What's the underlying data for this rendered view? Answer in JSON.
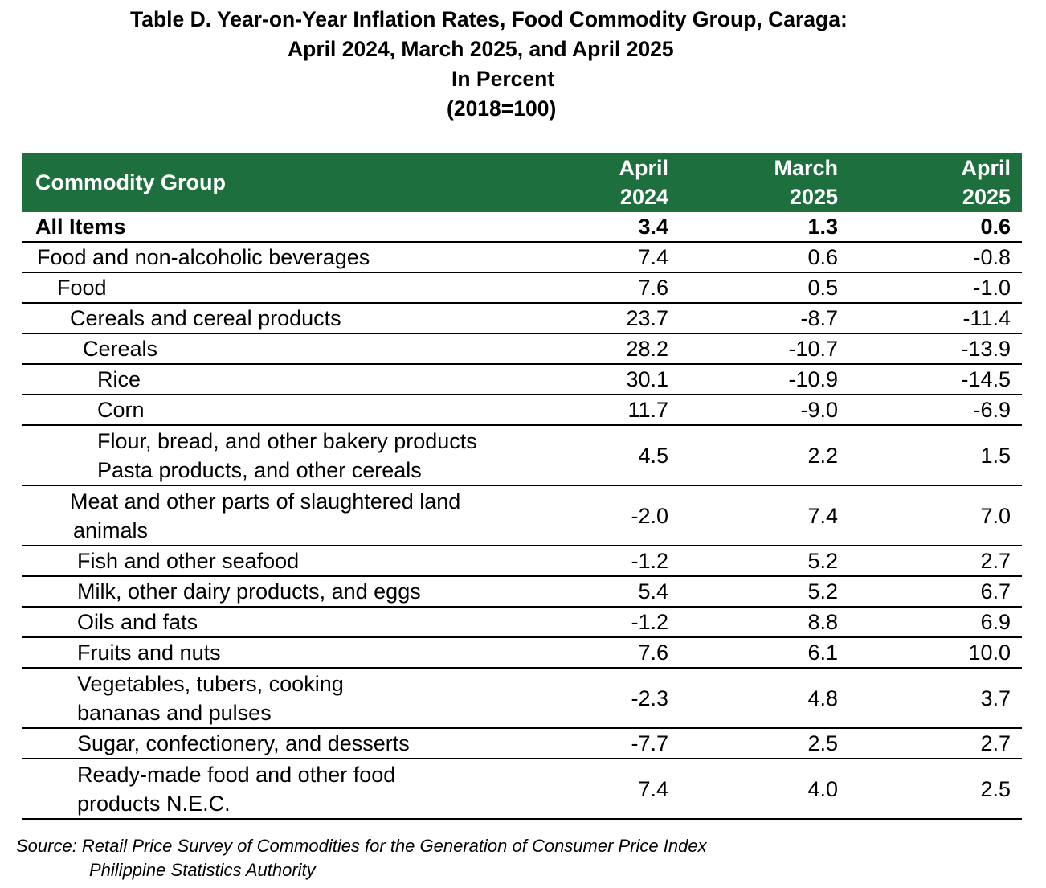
{
  "title": {
    "line1": "Table D. Year-on-Year Inflation Rates, Food Commodity Group, Caraga:",
    "line2": "April 2024, March 2025, and April 2025",
    "line3": "In Percent",
    "line4": "(2018=100)"
  },
  "table": {
    "header_color": "#1e6f3e",
    "columns": {
      "name": "Commodity Group",
      "col1_line1": "April",
      "col1_line2": "2024",
      "col2_line1": "March",
      "col2_line2": "2025",
      "col3_line1": "April",
      "col3_line2": "2025"
    },
    "rows": [
      {
        "name": "All Items",
        "a": "3.4",
        "b": "1.3",
        "c": "0.6"
      },
      {
        "name": "Food and non-alcoholic beverages",
        "a": "7.4",
        "b": "0.6",
        "c": "-0.8"
      },
      {
        "name": "Food",
        "a": "7.6",
        "b": "0.5",
        "c": "-1.0"
      },
      {
        "name": "Cereals and cereal products",
        "a": "23.7",
        "b": "-8.7",
        "c": "-11.4"
      },
      {
        "name": "Cereals",
        "a": "28.2",
        "b": "-10.7",
        "c": "-13.9"
      },
      {
        "name": "Rice",
        "a": "30.1",
        "b": "-10.9",
        "c": "-14.5"
      },
      {
        "name": "Corn",
        "a": "11.7",
        "b": "-9.0",
        "c": "-6.9"
      },
      {
        "name_line1": "Flour, bread, and other bakery products",
        "name_line2": "Pasta products, and other cereals",
        "a": "4.5",
        "b": "2.2",
        "c": "1.5"
      },
      {
        "name_line1": "Meat and other parts of slaughtered land",
        "name_line2": "animals",
        "a": "-2.0",
        "b": "7.4",
        "c": "7.0"
      },
      {
        "name": "Fish and other seafood",
        "a": "-1.2",
        "b": "5.2",
        "c": "2.7"
      },
      {
        "name": "Milk, other dairy products, and eggs",
        "a": "5.4",
        "b": "5.2",
        "c": "6.7"
      },
      {
        "name": "Oils and fats",
        "a": "-1.2",
        "b": "8.8",
        "c": "6.9"
      },
      {
        "name": "Fruits and nuts",
        "a": "7.6",
        "b": "6.1",
        "c": "10.0"
      },
      {
        "name_line1": "Vegetables, tubers, cooking",
        "name_line2": "bananas and pulses",
        "a": "-2.3",
        "b": "4.8",
        "c": "3.7"
      },
      {
        "name": "Sugar, confectionery, and desserts",
        "a": "-7.7",
        "b": "2.5",
        "c": "2.7"
      },
      {
        "name_line1": "Ready-made food and other food",
        "name_line2": "products N.E.C.",
        "a": "7.4",
        "b": "4.0",
        "c": "2.5"
      }
    ]
  },
  "source": {
    "line1": "Source: Retail Price Survey of Commodities for the Generation of Consumer Price Index",
    "line2": "Philippine Statistics Authority"
  }
}
